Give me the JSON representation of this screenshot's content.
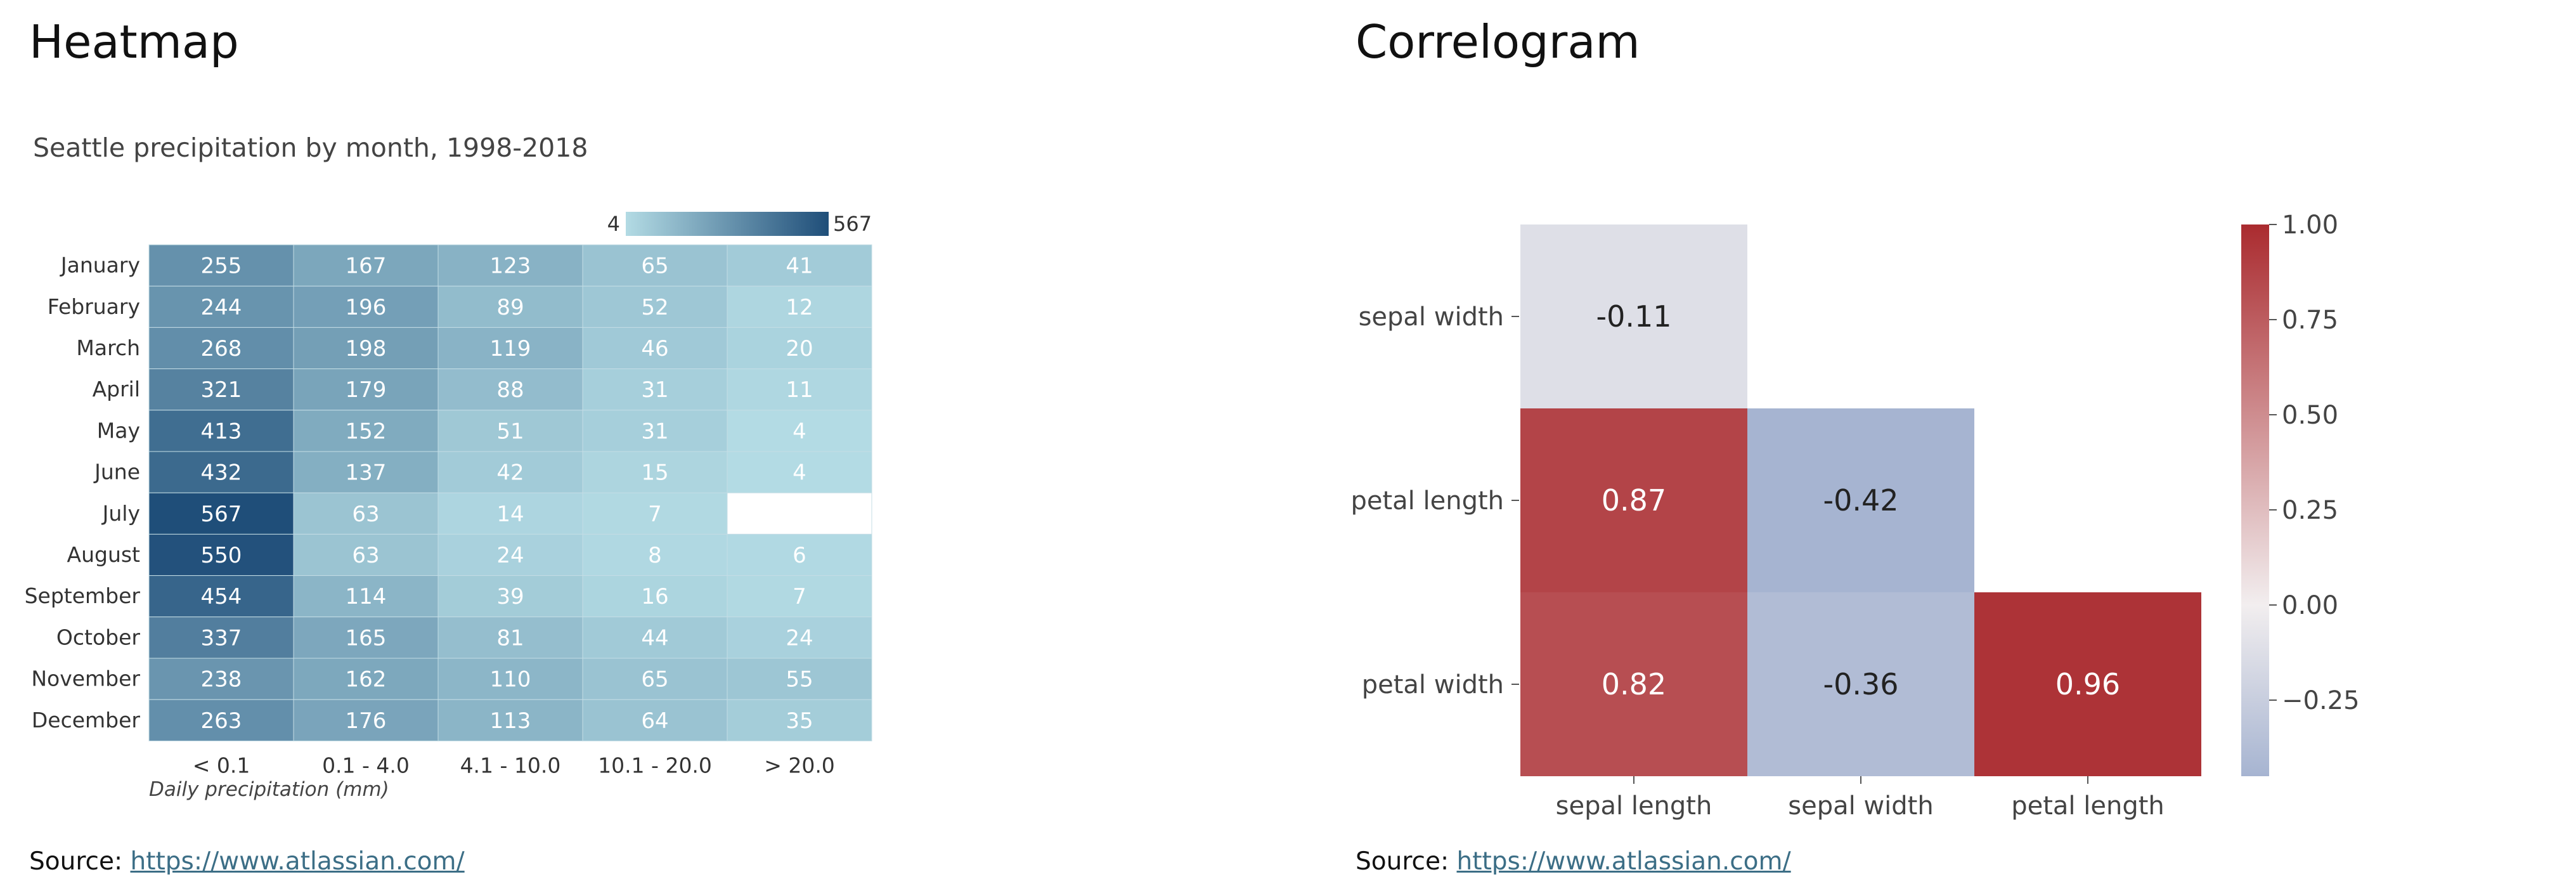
{
  "heatmap_section": {
    "title": "Heatmap",
    "source_label": "Source: ",
    "source_url": "https://www.atlassian.com/"
  },
  "correlogram_section": {
    "title": "Correlogram",
    "source_label": "Source: ",
    "source_url": "https://www.atlassian.com/"
  },
  "chart_data": [
    {
      "type": "heatmap",
      "title": "Seattle precipitation by month, 1998-2018",
      "xlabel": "Daily precipitation (mm)",
      "ylabel": "",
      "rows": [
        "January",
        "February",
        "March",
        "April",
        "May",
        "June",
        "July",
        "August",
        "September",
        "October",
        "November",
        "December"
      ],
      "columns": [
        "< 0.1",
        "0.1 - 4.0",
        "4.1 - 10.0",
        "10.1 - 20.0",
        "> 20.0"
      ],
      "values": [
        [
          255,
          167,
          123,
          65,
          41
        ],
        [
          244,
          196,
          89,
          52,
          12
        ],
        [
          268,
          198,
          119,
          46,
          20
        ],
        [
          321,
          179,
          88,
          31,
          11
        ],
        [
          413,
          152,
          51,
          31,
          4
        ],
        [
          432,
          137,
          42,
          15,
          4
        ],
        [
          567,
          63,
          14,
          7,
          null
        ],
        [
          550,
          63,
          24,
          8,
          6
        ],
        [
          454,
          114,
          39,
          16,
          7
        ],
        [
          337,
          165,
          81,
          44,
          24
        ],
        [
          238,
          162,
          110,
          65,
          55
        ],
        [
          263,
          176,
          113,
          64,
          35
        ]
      ],
      "color_scale": {
        "min": 4,
        "max": 567,
        "min_label": "4",
        "max_label": "567",
        "low_color": "#b3dbe4",
        "high_color": "#1f4e79"
      },
      "legend_position": "top-right"
    },
    {
      "type": "heatmap",
      "title": "",
      "row_labels": [
        "sepal width",
        "petal length",
        "petal width"
      ],
      "col_labels": [
        "sepal length",
        "sepal width",
        "petal length"
      ],
      "values": [
        [
          -0.11,
          null,
          null
        ],
        [
          0.87,
          -0.42,
          null
        ],
        [
          0.82,
          -0.36,
          0.96
        ]
      ],
      "value_labels": [
        [
          "-0.11",
          "",
          ""
        ],
        [
          "0.87",
          "-0.42",
          ""
        ],
        [
          "0.82",
          "-0.36",
          "0.96"
        ]
      ],
      "colorbar": {
        "ticks": [
          1.0,
          0.75,
          0.5,
          0.25,
          0.0,
          -0.25
        ],
        "tick_labels": [
          "1.00",
          "0.75",
          "0.50",
          "0.25",
          "0.00",
          "−0.25"
        ],
        "range": [
          -0.42,
          1.0
        ],
        "neg_color": "#a6b4d1",
        "mid_color": "#f2eeef",
        "pos_color": "#aa2b2f"
      },
      "legend_position": "right"
    }
  ]
}
